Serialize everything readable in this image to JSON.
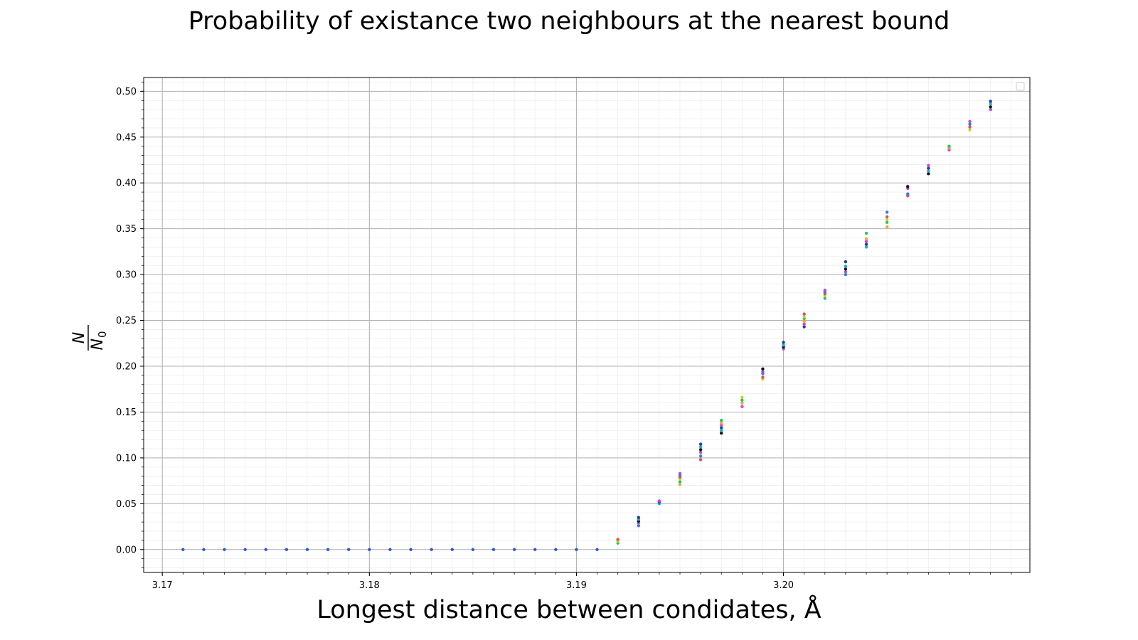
{
  "chart_data": {
    "type": "scatter",
    "title": "Probability of existance two neighbours at the nearest bound",
    "xlabel": "Longest distance between condidates, Å",
    "ylabel": {
      "numerator": "N",
      "denominator": "N",
      "subscript": "0"
    },
    "xlim": [
      3.1691,
      3.2119
    ],
    "ylim": [
      -0.025,
      0.515
    ],
    "x_ticks": [
      3.17,
      3.18,
      3.19,
      3.2
    ],
    "x_tick_labels": [
      "3.17",
      "3.18",
      "3.19",
      "3.20"
    ],
    "y_ticks": [
      0.0,
      0.05,
      0.1,
      0.15,
      0.2,
      0.25,
      0.3,
      0.35,
      0.4,
      0.45,
      0.5
    ],
    "y_tick_labels": [
      "0.00",
      "0.05",
      "0.10",
      "0.15",
      "0.20",
      "0.25",
      "0.30",
      "0.35",
      "0.40",
      "0.45",
      "0.50"
    ],
    "grid": {
      "major": true,
      "minor": true
    },
    "legend": "top-right",
    "point_colors": [
      "#1f3fa8",
      "#e03ad8",
      "#f0a830",
      "#22c55e",
      "#c8d22a",
      "#e05050",
      "#2f7be8",
      "#a84fe0",
      "#111111",
      "#1fb0b0"
    ],
    "points": [
      {
        "x": 3.171,
        "y": [
          0.0
        ]
      },
      {
        "x": 3.172,
        "y": [
          0.0
        ]
      },
      {
        "x": 3.173,
        "y": [
          0.0
        ]
      },
      {
        "x": 3.174,
        "y": [
          0.0
        ]
      },
      {
        "x": 3.175,
        "y": [
          0.0
        ]
      },
      {
        "x": 3.176,
        "y": [
          0.0
        ]
      },
      {
        "x": 3.177,
        "y": [
          0.0
        ]
      },
      {
        "x": 3.178,
        "y": [
          0.0
        ]
      },
      {
        "x": 3.179,
        "y": [
          0.0
        ]
      },
      {
        "x": 3.18,
        "y": [
          0.0
        ]
      },
      {
        "x": 3.181,
        "y": [
          0.0
        ]
      },
      {
        "x": 3.182,
        "y": [
          0.0
        ]
      },
      {
        "x": 3.183,
        "y": [
          0.0
        ]
      },
      {
        "x": 3.184,
        "y": [
          0.0
        ]
      },
      {
        "x": 3.185,
        "y": [
          0.0
        ]
      },
      {
        "x": 3.186,
        "y": [
          0.0
        ]
      },
      {
        "x": 3.187,
        "y": [
          0.0
        ]
      },
      {
        "x": 3.188,
        "y": [
          0.0
        ]
      },
      {
        "x": 3.189,
        "y": [
          0.0
        ]
      },
      {
        "x": 3.19,
        "y": [
          0.0
        ]
      },
      {
        "x": 3.191,
        "y": [
          0.0
        ]
      },
      {
        "x": 3.192,
        "y": [
          0.007,
          0.009,
          0.011
        ]
      },
      {
        "x": 3.193,
        "y": [
          0.026,
          0.029,
          0.031,
          0.033,
          0.035
        ]
      },
      {
        "x": 3.194,
        "y": [
          0.05,
          0.052,
          0.053
        ]
      },
      {
        "x": 3.195,
        "y": [
          0.071,
          0.074,
          0.077,
          0.079,
          0.081,
          0.083
        ]
      },
      {
        "x": 3.196,
        "y": [
          0.098,
          0.102,
          0.106,
          0.109,
          0.112,
          0.115
        ]
      },
      {
        "x": 3.197,
        "y": [
          0.127,
          0.13,
          0.133,
          0.136,
          0.138,
          0.141
        ]
      },
      {
        "x": 3.198,
        "y": [
          0.156,
          0.16,
          0.163,
          0.166
        ]
      },
      {
        "x": 3.199,
        "y": [
          0.186,
          0.188,
          0.192,
          0.194,
          0.197
        ]
      },
      {
        "x": 3.2,
        "y": [
          0.219,
          0.221,
          0.223,
          0.226
        ]
      },
      {
        "x": 3.201,
        "y": [
          0.243,
          0.246,
          0.249,
          0.252,
          0.254,
          0.257
        ]
      },
      {
        "x": 3.202,
        "y": [
          0.274,
          0.277,
          0.279,
          0.281,
          0.283
        ]
      },
      {
        "x": 3.203,
        "y": [
          0.3,
          0.303,
          0.306,
          0.309,
          0.314
        ]
      },
      {
        "x": 3.204,
        "y": [
          0.33,
          0.333,
          0.336,
          0.339,
          0.345
        ]
      },
      {
        "x": 3.205,
        "y": [
          0.352,
          0.357,
          0.36,
          0.363,
          0.368
        ]
      },
      {
        "x": 3.206,
        "y": [
          0.386,
          0.388,
          0.394,
          0.396
        ]
      },
      {
        "x": 3.207,
        "y": [
          0.41,
          0.413,
          0.416,
          0.419
        ]
      },
      {
        "x": 3.208,
        "y": [
          0.436,
          0.438,
          0.44
        ]
      },
      {
        "x": 3.209,
        "y": [
          0.458,
          0.461,
          0.464,
          0.467
        ]
      },
      {
        "x": 3.21,
        "y": [
          0.48,
          0.483,
          0.486,
          0.489
        ]
      }
    ]
  }
}
